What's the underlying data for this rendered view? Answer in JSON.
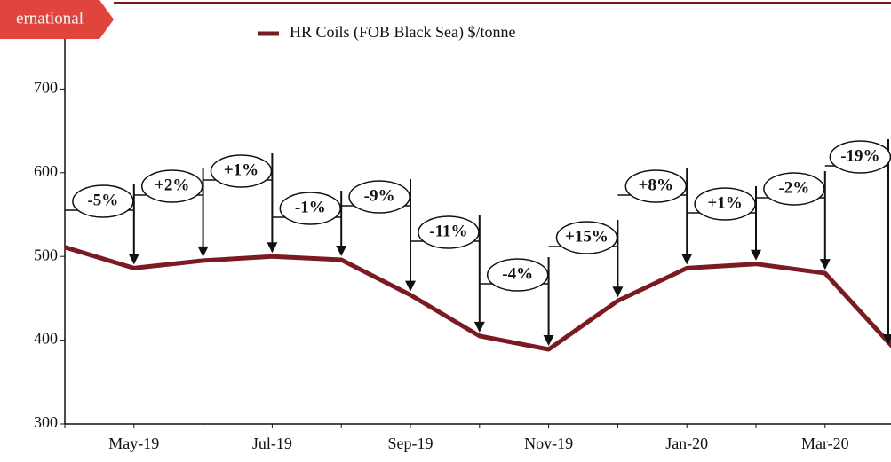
{
  "chart_data": {
    "type": "line",
    "tab_label": "ernational",
    "categories": [
      null,
      "May-19",
      null,
      "Jul-19",
      null,
      "Sep-19",
      null,
      "Nov-19",
      null,
      "Jan-20",
      null,
      "Mar-20",
      null
    ],
    "series": [
      {
        "name": "HR Coils (FOB Black Sea) $/tonne",
        "color": "#7b1a22",
        "values": [
          511,
          486,
          495,
          500,
          496,
          454,
          405,
          389,
          447,
          486,
          491,
          480,
          390
        ]
      }
    ],
    "annotations": [
      null,
      "-5%",
      "+2%",
      "+1%",
      "-1%",
      "-9%",
      "-11%",
      "-4%",
      "+15%",
      "+8%",
      "+1%",
      "-2%",
      "-19%"
    ],
    "ylim": [
      300,
      800
    ],
    "yticks": [
      300,
      400,
      500,
      600,
      700
    ]
  }
}
